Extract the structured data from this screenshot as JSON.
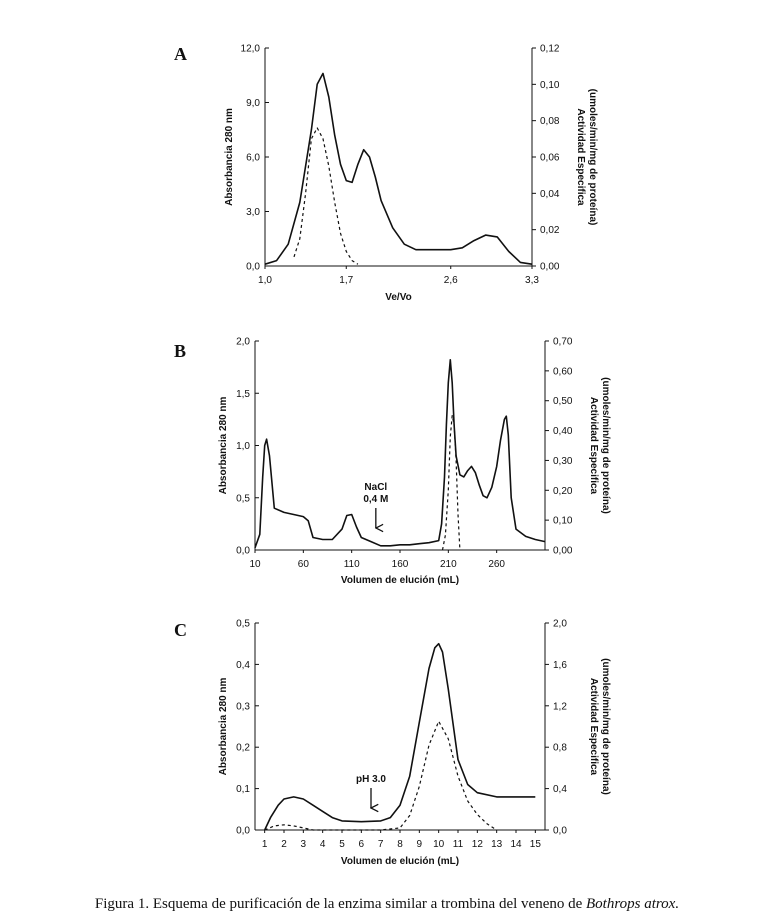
{
  "caption": {
    "text": "Figura 1. Esquema de purificación de la enzima similar a trombina del veneno de ",
    "species": "Bothrops atrox."
  },
  "chart_data": [
    {
      "panel": "A",
      "type": "line",
      "xlabel": "Ve/Vo",
      "ylabel": "Absorbancia 280 nm",
      "y2label_lines": [
        "Actividad Especifica",
        "(umoles/min/mg de proteína)"
      ],
      "xlim": [
        1.0,
        3.3
      ],
      "ylim": [
        0,
        12
      ],
      "y2lim": [
        0,
        0.12
      ],
      "xticks": [
        "1,0",
        "1,7",
        "2,6",
        "3,3"
      ],
      "xtick_values": [
        1.0,
        1.7,
        2.6,
        3.3
      ],
      "yticks": [
        "0,0",
        "3,0",
        "6,0",
        "9,0",
        "12,0"
      ],
      "ytick_values": [
        0,
        3,
        6,
        9,
        12
      ],
      "y2ticks": [
        "0,00",
        "0,02",
        "0,04",
        "0,06",
        "0,08",
        "0,10",
        "0,12"
      ],
      "y2tick_values": [
        0,
        0.02,
        0.04,
        0.06,
        0.08,
        0.1,
        0.12
      ],
      "grid": false,
      "series": [
        {
          "style": "solid",
          "axis": "left",
          "x": [
            1.0,
            1.1,
            1.2,
            1.3,
            1.4,
            1.45,
            1.5,
            1.55,
            1.6,
            1.65,
            1.7,
            1.75,
            1.8,
            1.85,
            1.9,
            1.95,
            2.0,
            2.1,
            2.2,
            2.3,
            2.4,
            2.5,
            2.6,
            2.7,
            2.8,
            2.9,
            3.0,
            3.1,
            3.2,
            3.3
          ],
          "y": [
            0.1,
            0.3,
            1.2,
            3.5,
            7.5,
            10.0,
            10.6,
            9.3,
            7.2,
            5.6,
            4.7,
            4.6,
            5.6,
            6.4,
            6.0,
            4.9,
            3.6,
            2.1,
            1.2,
            0.9,
            0.9,
            0.9,
            0.9,
            1.0,
            1.4,
            1.7,
            1.6,
            0.8,
            0.2,
            0.1
          ]
        },
        {
          "style": "dashed",
          "axis": "right",
          "x": [
            1.25,
            1.3,
            1.35,
            1.4,
            1.45,
            1.5,
            1.55,
            1.6,
            1.65,
            1.7,
            1.75,
            1.8
          ],
          "y": [
            0.005,
            0.015,
            0.04,
            0.07,
            0.076,
            0.07,
            0.055,
            0.035,
            0.018,
            0.008,
            0.003,
            0.001
          ]
        }
      ]
    },
    {
      "panel": "B",
      "type": "line",
      "xlabel": "Volumen de elución (mL)",
      "ylabel": "Absorbancia 280 nm",
      "y2label_lines": [
        "Actividad Especifica",
        "(umoles/min/mg de proteína)"
      ],
      "xlim": [
        10,
        310
      ],
      "ylim": [
        0,
        2.0
      ],
      "y2lim": [
        0,
        0.7
      ],
      "xticks": [
        "10",
        "60",
        "110",
        "160",
        "210",
        "260"
      ],
      "xtick_values": [
        10,
        60,
        110,
        160,
        210,
        260
      ],
      "yticks": [
        "0,0",
        "0,5",
        "1,0",
        "1,5",
        "2,0"
      ],
      "ytick_values": [
        0,
        0.5,
        1.0,
        1.5,
        2.0
      ],
      "y2ticks": [
        "0,00",
        "0,10",
        "0,20",
        "0,30",
        "0,40",
        "0,50",
        "0,60",
        "0,70"
      ],
      "y2tick_values": [
        0,
        0.1,
        0.2,
        0.3,
        0.4,
        0.5,
        0.6,
        0.7
      ],
      "grid": false,
      "annotation": {
        "lines": [
          "NaCl",
          "0,4 M"
        ],
        "x": 135,
        "arrow": true
      },
      "series": [
        {
          "style": "solid",
          "axis": "left",
          "x": [
            10,
            15,
            18,
            20,
            22,
            25,
            30,
            40,
            50,
            60,
            65,
            70,
            80,
            90,
            100,
            105,
            110,
            115,
            120,
            130,
            140,
            150,
            160,
            170,
            180,
            190,
            200,
            203,
            206,
            208,
            210,
            212,
            214,
            216,
            218,
            222,
            226,
            230,
            234,
            238,
            242,
            246,
            250,
            255,
            260,
            264,
            268,
            270,
            272,
            275,
            280,
            290,
            300,
            310
          ],
          "y": [
            0.02,
            0.15,
            0.7,
            1.0,
            1.06,
            0.9,
            0.4,
            0.36,
            0.34,
            0.32,
            0.28,
            0.12,
            0.1,
            0.1,
            0.2,
            0.33,
            0.34,
            0.22,
            0.12,
            0.08,
            0.04,
            0.04,
            0.05,
            0.05,
            0.06,
            0.07,
            0.09,
            0.25,
            0.7,
            1.2,
            1.6,
            1.82,
            1.6,
            1.2,
            0.9,
            0.72,
            0.7,
            0.76,
            0.8,
            0.74,
            0.62,
            0.52,
            0.5,
            0.6,
            0.8,
            1.05,
            1.25,
            1.28,
            1.1,
            0.5,
            0.2,
            0.13,
            0.1,
            0.08
          ]
        },
        {
          "style": "dashed",
          "axis": "right",
          "x": [
            204,
            207,
            210,
            212,
            214,
            216,
            218,
            220,
            222
          ],
          "y": [
            0.0,
            0.05,
            0.2,
            0.38,
            0.45,
            0.42,
            0.3,
            0.12,
            0.0
          ]
        }
      ]
    },
    {
      "panel": "C",
      "type": "line",
      "xlabel": "Volumen de elución (mL)",
      "ylabel": "Absorbancia 280 nm",
      "y2label_lines": [
        "Actividad Especifica",
        "(umoles/min/mg de proteína)"
      ],
      "xlim": [
        0.5,
        15.5
      ],
      "ylim": [
        0,
        0.5
      ],
      "y2lim": [
        0,
        2.0
      ],
      "xticks": [
        "1",
        "2",
        "3",
        "4",
        "5",
        "6",
        "7",
        "8",
        "9",
        "10",
        "11",
        "12",
        "13",
        "14",
        "15"
      ],
      "xtick_values": [
        1,
        2,
        3,
        4,
        5,
        6,
        7,
        8,
        9,
        10,
        11,
        12,
        13,
        14,
        15
      ],
      "yticks": [
        "0,0",
        "0,1",
        "0,2",
        "0,3",
        "0,4",
        "0,5"
      ],
      "ytick_values": [
        0,
        0.1,
        0.2,
        0.3,
        0.4,
        0.5
      ],
      "y2ticks": [
        "0,0",
        "0,4",
        "0,8",
        "1,2",
        "1,6",
        "2,0"
      ],
      "y2tick_values": [
        0,
        0.4,
        0.8,
        1.2,
        1.6,
        2.0
      ],
      "grid": false,
      "annotation": {
        "lines": [
          "pH 3.0"
        ],
        "x": 6.5,
        "arrow": true
      },
      "series": [
        {
          "style": "solid",
          "axis": "left",
          "x": [
            1,
            1.3,
            1.7,
            2.0,
            2.5,
            3.0,
            3.5,
            4.0,
            4.5,
            5.0,
            6.0,
            7.0,
            7.5,
            8.0,
            8.5,
            9.0,
            9.5,
            9.8,
            10.0,
            10.2,
            10.5,
            11.0,
            11.5,
            12.0,
            13.0,
            14.0,
            15.0
          ],
          "y": [
            0.0,
            0.03,
            0.06,
            0.075,
            0.08,
            0.075,
            0.06,
            0.045,
            0.03,
            0.022,
            0.02,
            0.022,
            0.03,
            0.06,
            0.13,
            0.26,
            0.39,
            0.44,
            0.45,
            0.43,
            0.34,
            0.17,
            0.11,
            0.09,
            0.08,
            0.08,
            0.08
          ]
        },
        {
          "style": "dashed",
          "axis": "right",
          "x": [
            1,
            1.5,
            2.0,
            2.5,
            3.0,
            3.5,
            4.0,
            7.0,
            8.0,
            8.5,
            9.0,
            9.5,
            10.0,
            10.5,
            11.0,
            11.5,
            12.0,
            12.5,
            13.0
          ],
          "y": [
            0.0,
            0.04,
            0.05,
            0.04,
            0.02,
            0.0,
            0.0,
            0.0,
            0.02,
            0.14,
            0.42,
            0.82,
            1.05,
            0.88,
            0.52,
            0.28,
            0.15,
            0.06,
            0.0
          ]
        }
      ]
    }
  ]
}
